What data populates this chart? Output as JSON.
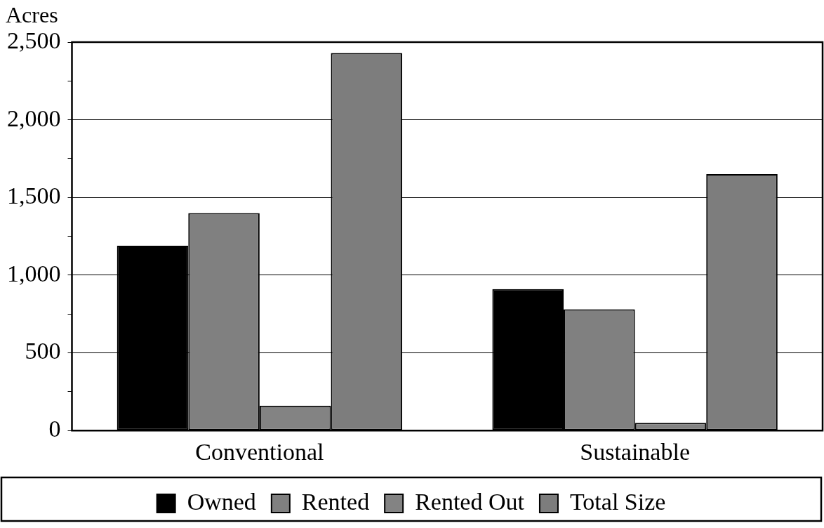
{
  "chart_data": {
    "type": "bar",
    "ylabel": "Acres",
    "categories": [
      "Conventional",
      "Sustainable"
    ],
    "series": [
      {
        "name": "Owned",
        "color": "#000000",
        "values": [
          1190,
          910
        ]
      },
      {
        "name": "Rented",
        "color": "#808080",
        "values": [
          1400,
          780
        ]
      },
      {
        "name": "Rented Out",
        "color": "#838383",
        "values": [
          160,
          50
        ]
      },
      {
        "name": "Total Size",
        "color": "#7d7d7d",
        "values": [
          2430,
          1650
        ]
      }
    ],
    "ylim": [
      0,
      2500
    ],
    "yticks": [
      0,
      {
        "value": 250,
        "label": null
      },
      500,
      {
        "value": 750,
        "label": null
      },
      {
        "value": 1000,
        "label": "1,000"
      },
      {
        "value": 1250,
        "label": null
      },
      {
        "value": 1500,
        "label": "1,500"
      },
      {
        "value": 1750,
        "label": null
      },
      {
        "value": 2000,
        "label": "2,000"
      },
      {
        "value": 2250,
        "label": null
      },
      {
        "value": 2500,
        "label": "2,500"
      }
    ],
    "grid": "y",
    "legend": "bottom"
  }
}
